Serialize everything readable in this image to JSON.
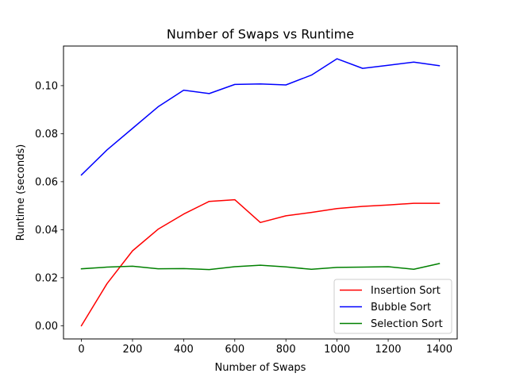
{
  "chart_data": {
    "type": "line",
    "title": "Number of Swaps vs Runtime",
    "xlabel": "Number of Swaps",
    "ylabel": "Runtime (seconds)",
    "xlim": [
      -70,
      1470
    ],
    "ylim": [
      -0.0055,
      0.1165
    ],
    "xticks": [
      0,
      200,
      400,
      600,
      800,
      1000,
      1200,
      1400
    ],
    "xtick_labels": [
      "0",
      "200",
      "400",
      "600",
      "800",
      "1000",
      "1200",
      "1400"
    ],
    "yticks": [
      0.0,
      0.02,
      0.04,
      0.06,
      0.08,
      0.1
    ],
    "ytick_labels": [
      "0.00",
      "0.02",
      "0.04",
      "0.06",
      "0.08",
      "0.10"
    ],
    "grid": false,
    "legend_position": "lower-right",
    "x": [
      0,
      100,
      200,
      300,
      400,
      500,
      600,
      700,
      800,
      900,
      1000,
      1100,
      1200,
      1300,
      1400
    ],
    "series": [
      {
        "name": "Insertion Sort",
        "color": "#ff0000",
        "values": [
          0.0,
          0.0175,
          0.0312,
          0.0402,
          0.0465,
          0.0518,
          0.0525,
          0.043,
          0.0458,
          0.0472,
          0.0488,
          0.0497,
          0.0503,
          0.051,
          0.051
        ]
      },
      {
        "name": "Bubble Sort",
        "color": "#0000ff",
        "values": [
          0.0628,
          0.0732,
          0.0822,
          0.0912,
          0.0981,
          0.0967,
          0.1005,
          0.1007,
          0.1003,
          0.1044,
          0.1112,
          0.1072,
          0.1085,
          0.1098,
          0.1083
        ]
      },
      {
        "name": "Selection Sort",
        "color": "#008000",
        "values": [
          0.0237,
          0.0244,
          0.0248,
          0.0237,
          0.0238,
          0.0234,
          0.0246,
          0.0252,
          0.0245,
          0.0235,
          0.0243,
          0.0244,
          0.0246,
          0.0235,
          0.0259
        ]
      }
    ]
  }
}
